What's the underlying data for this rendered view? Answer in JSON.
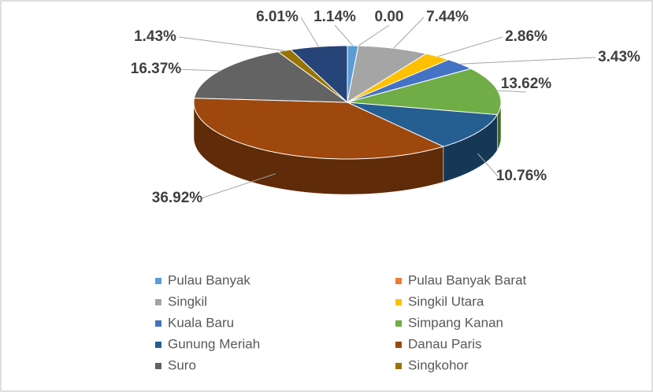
{
  "chart_data": {
    "type": "pie3d",
    "categories": [
      "Pulau Banyak",
      "Pulau Banyak Barat",
      "Singkil",
      "Singkil Utara",
      "Kuala Baru",
      "Simpang Kanan",
      "Gunung Meriah",
      "Danau Paris",
      "Suro",
      "Singkohor",
      null
    ],
    "values": [
      1.14,
      0.0,
      7.44,
      2.86,
      3.43,
      13.62,
      10.76,
      36.92,
      16.37,
      1.43,
      6.01
    ],
    "value_labels": [
      "1.14%",
      "0.00",
      "7.44%",
      "2.86%",
      "3.43%",
      "13.62%",
      "10.76%",
      "36.92%",
      "16.37%",
      "1.43%",
      "6.01%"
    ],
    "colors": [
      "#5b9bd5",
      "#ed7d31",
      "#a5a5a5",
      "#ffc000",
      "#4472c4",
      "#70ad47",
      "#255e91",
      "#9e480e",
      "#636363",
      "#997300",
      "#264478"
    ],
    "legend": "bottom"
  }
}
